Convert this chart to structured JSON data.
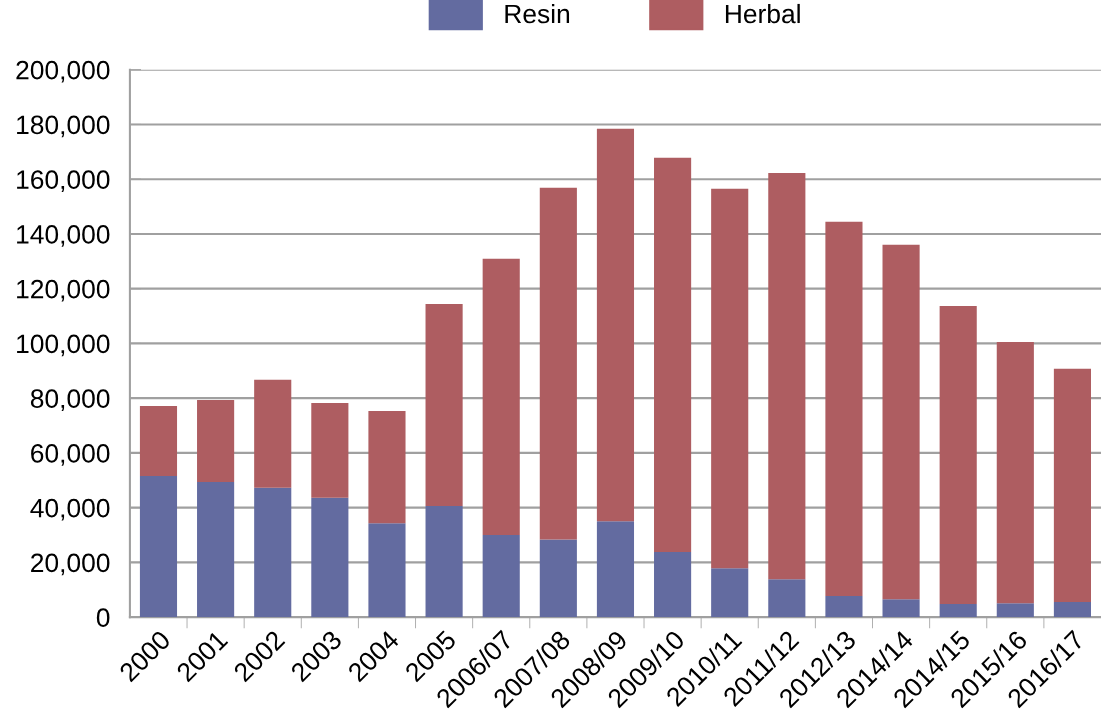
{
  "chart_data": {
    "type": "bar",
    "stacked": true,
    "categories": [
      "2000",
      "2001",
      "2002",
      "2003",
      "2004",
      "2005",
      "2006/07",
      "2007/08",
      "2008/09",
      "2009/10",
      "2010/11",
      "2011/12",
      "2012/13",
      "2014/14",
      "2014/15",
      "2015/16",
      "2016/17"
    ],
    "series": [
      {
        "name": "Resin",
        "color": "#636ba0",
        "values": [
          51600,
          49400,
          47300,
          43600,
          34300,
          40600,
          30000,
          28400,
          35000,
          23800,
          17900,
          13800,
          7700,
          6500,
          4800,
          5100,
          5500
        ]
      },
      {
        "name": "Herbal",
        "color": "#ae5d61",
        "values": [
          25500,
          29900,
          39400,
          34600,
          41000,
          73800,
          100900,
          128500,
          143400,
          144000,
          138600,
          148500,
          136700,
          129500,
          108900,
          95400,
          85200
        ]
      }
    ],
    "ylim": [
      0,
      200000
    ],
    "yticks": [
      0,
      {
        "value": 20000,
        "label": "20,000"
      },
      {
        "value": 40000,
        "label": "40,000"
      },
      {
        "value": 60000,
        "label": "60,000"
      },
      {
        "value": 80000,
        "label": "80,000"
      },
      {
        "value": 100000,
        "label": "100,000"
      },
      {
        "value": 120000,
        "label": "120,000"
      },
      {
        "value": 140000,
        "label": "140,000"
      },
      {
        "value": 160000,
        "label": "160,000"
      },
      {
        "value": 180000,
        "label": "180,000"
      },
      {
        "value": 200000,
        "label": "200,000"
      }
    ],
    "grid": "y",
    "legend": "top"
  }
}
